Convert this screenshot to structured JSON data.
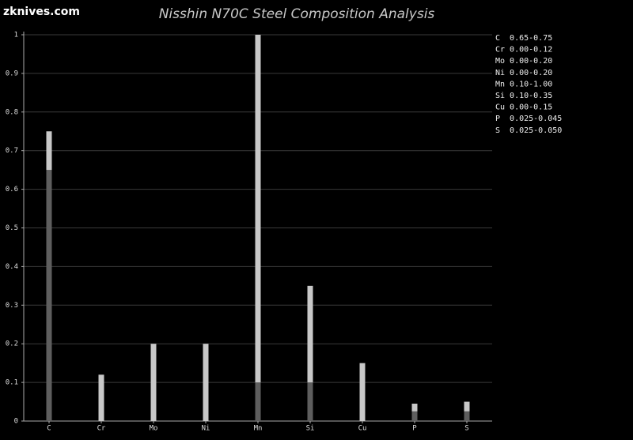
{
  "watermark": "zknives.com",
  "chart_data": {
    "type": "range-bar",
    "title": "Nisshin N70C Steel Composition Analysis",
    "categories": [
      "C",
      "Cr",
      "Mo",
      "Ni",
      "Mn",
      "Si",
      "Cu",
      "P",
      "S"
    ],
    "low": [
      0.65,
      0,
      0,
      0,
      0.1,
      0.1,
      0,
      0.025,
      0.025
    ],
    "high": [
      0.75,
      0.12,
      0.2,
      0.2,
      1.0,
      0.35,
      0.15,
      0.045,
      0.05
    ],
    "low_color": "#5e5e5e",
    "high_color": "#c8c8c8",
    "legend": [
      "C  0.65-0.75",
      "Cr 0.00-0.12",
      "Mo 0.00-0.20",
      "Ni 0.00-0.20",
      "Mn 0.10-1.00",
      "Si 0.10-0.35",
      "Cu 0.00-0.15",
      "P  0.025-0.045",
      "S  0.025-0.050"
    ],
    "ylim": [
      0,
      1
    ],
    "yticks": [
      0,
      0.1,
      0.2,
      0.3,
      0.4,
      0.5,
      0.6,
      0.7,
      0.8,
      0.9,
      1
    ],
    "grid": true
  }
}
